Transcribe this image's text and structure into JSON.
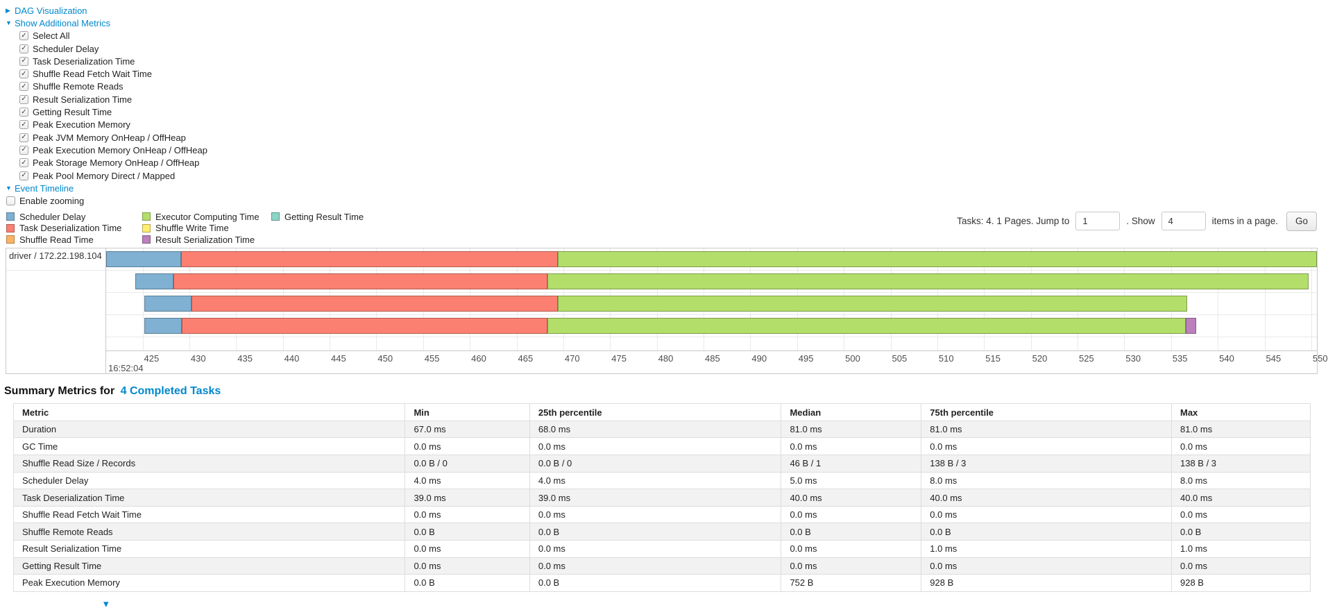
{
  "colors": {
    "scheduler_delay": "#80B1D3",
    "task_deserialization": "#FB8072",
    "shuffle_read": "#FDB462",
    "executor_computing": "#B3DE69",
    "shuffle_write": "#FFED6F",
    "result_serialization": "#BC80BD",
    "getting_result": "#8DD3C7",
    "link": "#0088CC"
  },
  "links": {
    "dag": "DAG Visualization",
    "metrics": "Show Additional Metrics",
    "timeline": "Event Timeline"
  },
  "metrics_panel": {
    "items": [
      "Select All",
      "Scheduler Delay",
      "Task Deserialization Time",
      "Shuffle Read Fetch Wait Time",
      "Shuffle Remote Reads",
      "Result Serialization Time",
      "Getting Result Time",
      "Peak Execution Memory",
      "Peak JVM Memory OnHeap / OffHeap",
      "Peak Execution Memory OnHeap / OffHeap",
      "Peak Storage Memory OnHeap / OffHeap",
      "Peak Pool Memory Direct / Mapped"
    ]
  },
  "enable_zooming_label": "Enable zooming",
  "legend": {
    "items": [
      {
        "label": "Scheduler Delay",
        "color_key": "scheduler_delay"
      },
      {
        "label": "Task Deserialization Time",
        "color_key": "task_deserialization"
      },
      {
        "label": "Shuffle Read Time",
        "color_key": "shuffle_read"
      },
      {
        "label": "Executor Computing Time",
        "color_key": "executor_computing"
      },
      {
        "label": "Shuffle Write Time",
        "color_key": "shuffle_write"
      },
      {
        "label": "Result Serialization Time",
        "color_key": "result_serialization"
      },
      {
        "label": "Getting Result Time",
        "color_key": "getting_result"
      }
    ]
  },
  "pagination": {
    "tasks_text": "Tasks: 4. 1 Pages. Jump to",
    "jump_value": "1",
    "show_label": ". Show",
    "show_value": "4",
    "items_text": "items in a page.",
    "go_label": "Go"
  },
  "chart_data": {
    "type": "timeline",
    "group_label": "driver / 172.22.198.104",
    "axis": {
      "min": 421.1,
      "max": 550.6,
      "ticks": [
        425,
        430,
        435,
        440,
        445,
        450,
        455,
        460,
        465,
        470,
        475,
        480,
        485,
        490,
        495,
        500,
        505,
        510,
        515,
        520,
        525,
        530,
        535,
        540,
        545,
        550
      ],
      "start_time_label": "16:52:04"
    },
    "tasks": [
      {
        "segments": [
          {
            "type": "scheduler_delay",
            "start": 421.1,
            "end": 429.1
          },
          {
            "type": "task_deserialization",
            "start": 429.1,
            "end": 469.4
          },
          {
            "type": "executor_computing",
            "start": 469.4,
            "end": 550.6
          }
        ]
      },
      {
        "segments": [
          {
            "type": "scheduler_delay",
            "start": 424.2,
            "end": 428.3
          },
          {
            "type": "task_deserialization",
            "start": 428.3,
            "end": 468.3
          },
          {
            "type": "executor_computing",
            "start": 468.3,
            "end": 549.7
          }
        ]
      },
      {
        "segments": [
          {
            "type": "scheduler_delay",
            "start": 425.2,
            "end": 430.2
          },
          {
            "type": "task_deserialization",
            "start": 430.2,
            "end": 469.4
          },
          {
            "type": "executor_computing",
            "start": 469.4,
            "end": 536.7
          }
        ]
      },
      {
        "segments": [
          {
            "type": "scheduler_delay",
            "start": 425.2,
            "end": 429.2
          },
          {
            "type": "task_deserialization",
            "start": 429.2,
            "end": 468.3
          },
          {
            "type": "executor_computing",
            "start": 468.3,
            "end": 536.6
          },
          {
            "type": "result_serialization",
            "start": 536.6,
            "end": 537.7
          }
        ]
      }
    ]
  },
  "summary": {
    "title_prefix": "Summary Metrics for",
    "title_link": "4 Completed Tasks",
    "columns": [
      "Metric",
      "Min",
      "25th percentile",
      "Median",
      "75th percentile",
      "Max"
    ],
    "rows": [
      {
        "metric": "Duration",
        "values": [
          "67.0 ms",
          "68.0 ms",
          "81.0 ms",
          "81.0 ms",
          "81.0 ms"
        ]
      },
      {
        "metric": "GC Time",
        "values": [
          "0.0 ms",
          "0.0 ms",
          "0.0 ms",
          "0.0 ms",
          "0.0 ms"
        ]
      },
      {
        "metric": "Shuffle Read Size / Records",
        "values": [
          "0.0 B / 0",
          "0.0 B / 0",
          "46 B / 1",
          "138 B / 3",
          "138 B / 3"
        ]
      },
      {
        "metric": "Scheduler Delay",
        "values": [
          "4.0 ms",
          "4.0 ms",
          "5.0 ms",
          "8.0 ms",
          "8.0 ms"
        ]
      },
      {
        "metric": "Task Deserialization Time",
        "values": [
          "39.0 ms",
          "39.0 ms",
          "40.0 ms",
          "40.0 ms",
          "40.0 ms"
        ]
      },
      {
        "metric": "Shuffle Read Fetch Wait Time",
        "values": [
          "0.0 ms",
          "0.0 ms",
          "0.0 ms",
          "0.0 ms",
          "0.0 ms"
        ]
      },
      {
        "metric": "Shuffle Remote Reads",
        "values": [
          "0.0 B",
          "0.0 B",
          "0.0 B",
          "0.0 B",
          "0.0 B"
        ]
      },
      {
        "metric": "Result Serialization Time",
        "values": [
          "0.0 ms",
          "0.0 ms",
          "0.0 ms",
          "1.0 ms",
          "1.0 ms"
        ]
      },
      {
        "metric": "Getting Result Time",
        "values": [
          "0.0 ms",
          "0.0 ms",
          "0.0 ms",
          "0.0 ms",
          "0.0 ms"
        ]
      },
      {
        "metric": "Peak Execution Memory",
        "values": [
          "0.0 B",
          "0.0 B",
          "752 B",
          "928 B",
          "928 B"
        ]
      }
    ]
  }
}
